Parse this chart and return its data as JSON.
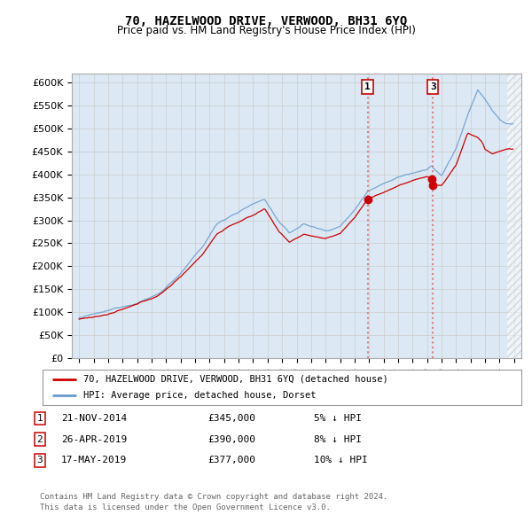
{
  "title": "70, HAZELWOOD DRIVE, VERWOOD, BH31 6YQ",
  "subtitle": "Price paid vs. HM Land Registry's House Price Index (HPI)",
  "background_color": "#dce9f5",
  "plot_bg_color": "#dce9f5",
  "ylim": [
    0,
    620000
  ],
  "yticks": [
    0,
    50000,
    100000,
    150000,
    200000,
    250000,
    300000,
    350000,
    400000,
    450000,
    500000,
    550000,
    600000
  ],
  "ytick_labels": [
    "£0",
    "£50K",
    "£100K",
    "£150K",
    "£200K",
    "£250K",
    "£300K",
    "£350K",
    "£400K",
    "£450K",
    "£500K",
    "£550K",
    "£600K"
  ],
  "legend_red_label": "70, HAZELWOOD DRIVE, VERWOOD, BH31 6YQ (detached house)",
  "legend_blue_label": "HPI: Average price, detached house, Dorset",
  "sale1_year": 2014.9,
  "sale1_price": 345000,
  "sale2_year": 2019.32,
  "sale2_price": 390000,
  "sale3_year": 2019.4,
  "sale3_price": 377000,
  "table_data": [
    [
      "1",
      "21-NOV-2014",
      "£345,000",
      "5% ↓ HPI"
    ],
    [
      "2",
      "26-APR-2019",
      "£390,000",
      "8% ↓ HPI"
    ],
    [
      "3",
      "17-MAY-2019",
      "£377,000",
      "10% ↓ HPI"
    ]
  ],
  "footer": "Contains HM Land Registry data © Crown copyright and database right 2024.\nThis data is licensed under the Open Government Licence v3.0.",
  "red_line_color": "#cc0000",
  "blue_line_color": "#6699cc",
  "marker_box_color": "#cc0000",
  "dashed_line_color": "#dd6666",
  "hatch_color": "#cccccc",
  "grid_color": "#cccccc",
  "spine_color": "#aaaaaa"
}
